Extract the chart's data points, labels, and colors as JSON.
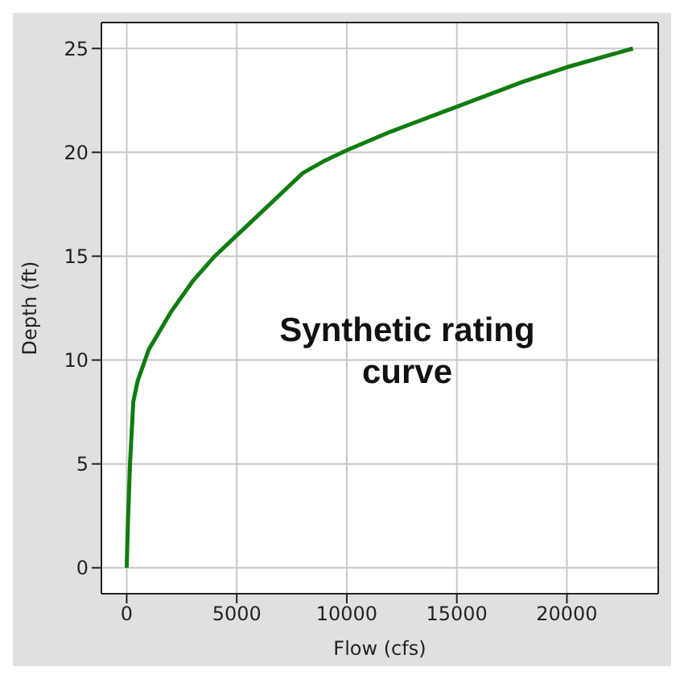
{
  "chart_data": {
    "type": "line",
    "xlabel": "Flow (cfs)",
    "ylabel": "Depth (ft)",
    "x": [
      0,
      50,
      150,
      300,
      500,
      1000,
      2000,
      3000,
      4000,
      5000,
      6000,
      7000,
      8000,
      9000,
      10000,
      12000,
      15000,
      18000,
      20000,
      23000
    ],
    "series": [
      {
        "color": "#107c10",
        "values": [
          0,
          2,
          5,
          8,
          9,
          10.5,
          12.3,
          13.8,
          15,
          16,
          17,
          18,
          19,
          19.6,
          20.1,
          21,
          22.2,
          23.4,
          24.1,
          25
        ]
      }
    ],
    "xlim": [
      -1150,
      24150
    ],
    "ylim": [
      -1.25,
      26.25
    ],
    "xticks": [
      0,
      5000,
      10000,
      15000,
      20000
    ],
    "yticks": [
      0,
      5,
      10,
      15,
      20,
      25
    ],
    "grid": true,
    "marker": "none",
    "line_style": "solid",
    "annotations": [
      "Synthetic rating curve"
    ]
  }
}
